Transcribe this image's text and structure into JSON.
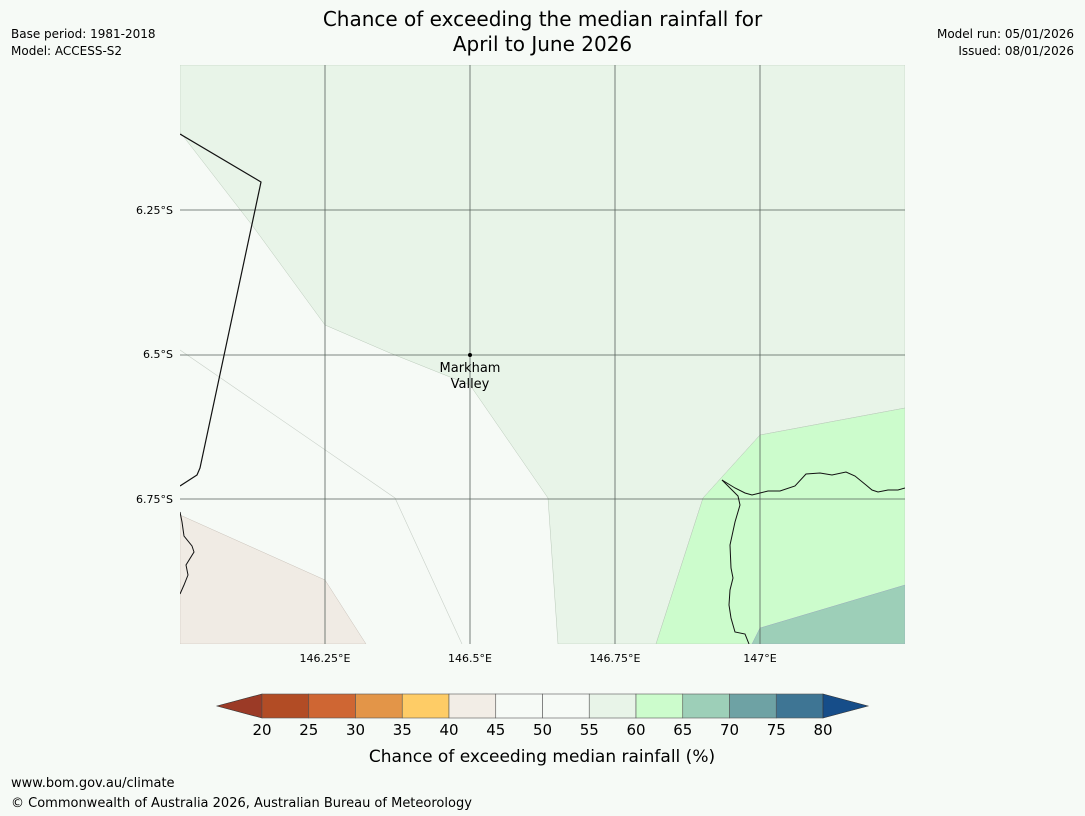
{
  "header": {
    "title_line1": "Chance of exceeding the median rainfall for",
    "title_line2": "April to June 2026",
    "base_period": "Base period: 1981-2018",
    "model": "Model: ACCESS-S2",
    "model_run": "Model run: 05/01/2026",
    "issued": "Issued: 08/01/2026"
  },
  "map": {
    "lat_ticks": [
      "6.25°S",
      "6.5°S",
      "6.75°S"
    ],
    "lon_ticks": [
      "146.25°E",
      "146.5°E",
      "146.75°E",
      "147°E"
    ],
    "place": {
      "line1": "Markham",
      "line2": "Valley"
    },
    "region_colors": {
      "neutral": "#f6faf6",
      "above_55_60": "#e8f4e8",
      "above_60_65": "#ccfccc",
      "above_65_70": "#9dcfb8",
      "below_40_45": "#f0ebe4"
    }
  },
  "legend": {
    "title": "Chance of exceeding median rainfall (%)",
    "ticks": [
      "20",
      "25",
      "30",
      "35",
      "40",
      "45",
      "50",
      "55",
      "60",
      "65",
      "70",
      "75",
      "80"
    ],
    "colors": [
      "#9b3a26",
      "#b24c25",
      "#cf6633",
      "#e39548",
      "#fecc66",
      "#f2ede6",
      "#f6faf6",
      "#f6faf6",
      "#e8f4e8",
      "#ccfccc",
      "#9dcfb8",
      "#6ea2a4",
      "#3e7594",
      "#164d89"
    ]
  },
  "footer": {
    "url": "www.bom.gov.au/climate",
    "copyright": "© Commonwealth of Australia 2026, Australian Bureau of Meteorology"
  }
}
